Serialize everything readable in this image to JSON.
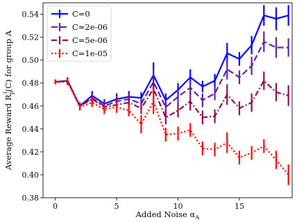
{
  "chart_data": {
    "type": "line",
    "xlabel": "Added Noise α",
    "xlabel_sub": "A",
    "ylabel": "Average Reward R",
    "ylabel_sub": "p",
    "ylabel_sup": "i",
    "ylabel_tail": "(C) for group A",
    "xlim": [
      -1,
      19.3
    ],
    "ylim": [
      0.38,
      0.55
    ],
    "xticks": [
      0,
      5,
      10,
      15
    ],
    "yticks": [
      0.38,
      0.4,
      0.42,
      0.44,
      0.46,
      0.48,
      0.5,
      0.52,
      0.54
    ],
    "ytick_labels": [
      "0.38",
      "0.40",
      "0.42",
      "0.44",
      "0.46",
      "0.48",
      "0.50",
      "0.52",
      "0.54"
    ],
    "grid": false,
    "legend": "top-left",
    "x": [
      0,
      1,
      2,
      3,
      4,
      5,
      6,
      7,
      8,
      9,
      10,
      11,
      12,
      13,
      14,
      15,
      16,
      17,
      18,
      19
    ],
    "series": [
      {
        "name": "C=0",
        "color": "#0000ff",
        "dash": "solid",
        "values": [
          0.481,
          0.482,
          0.46,
          0.469,
          0.462,
          0.466,
          0.468,
          0.467,
          0.487,
          0.465,
          0.474,
          0.485,
          0.477,
          0.482,
          0.506,
          0.501,
          0.513,
          0.539,
          0.536,
          0.539
        ],
        "errors": [
          0.002,
          0.003,
          0.003,
          0.004,
          0.004,
          0.005,
          0.005,
          0.005,
          0.011,
          0.006,
          0.006,
          0.007,
          0.005,
          0.006,
          0.009,
          0.006,
          0.008,
          0.009,
          0.01,
          0.009
        ]
      },
      {
        "name": "C=2e-06",
        "color": "#5c1fa8",
        "dash": "dashed",
        "values": [
          0.481,
          0.482,
          0.46,
          0.467,
          0.46,
          0.464,
          0.466,
          0.462,
          0.481,
          0.459,
          0.468,
          0.476,
          0.465,
          0.471,
          0.492,
          0.485,
          0.495,
          0.516,
          0.511,
          0.511
        ],
        "errors": [
          0.002,
          0.003,
          0.003,
          0.004,
          0.004,
          0.005,
          0.005,
          0.005,
          0.011,
          0.006,
          0.006,
          0.006,
          0.006,
          0.006,
          0.009,
          0.006,
          0.008,
          0.009,
          0.009,
          0.008
        ]
      },
      {
        "name": "C=5e-06",
        "color": "#8b0a50",
        "dash": "dashdot",
        "values": [
          0.481,
          0.482,
          0.46,
          0.466,
          0.459,
          0.461,
          0.463,
          0.458,
          0.475,
          0.45,
          0.456,
          0.464,
          0.45,
          0.451,
          0.47,
          0.458,
          0.463,
          0.482,
          0.472,
          0.469
        ],
        "errors": [
          0.002,
          0.003,
          0.003,
          0.004,
          0.004,
          0.005,
          0.005,
          0.005,
          0.011,
          0.006,
          0.006,
          0.008,
          0.006,
          0.006,
          0.009,
          0.006,
          0.008,
          0.008,
          0.008,
          0.009
        ]
      },
      {
        "name": "C=1e-05",
        "color": "#ff0000",
        "dash": "dotted",
        "values": [
          0.481,
          0.481,
          0.459,
          0.463,
          0.457,
          0.459,
          0.456,
          0.444,
          0.464,
          0.435,
          0.436,
          0.439,
          0.423,
          0.422,
          0.428,
          0.415,
          0.419,
          0.425,
          0.413,
          0.4
        ],
        "errors": [
          0.002,
          0.003,
          0.003,
          0.004,
          0.004,
          0.005,
          0.005,
          0.008,
          0.011,
          0.006,
          0.006,
          0.006,
          0.006,
          0.006,
          0.009,
          0.006,
          0.006,
          0.006,
          0.008,
          0.009
        ]
      }
    ]
  }
}
